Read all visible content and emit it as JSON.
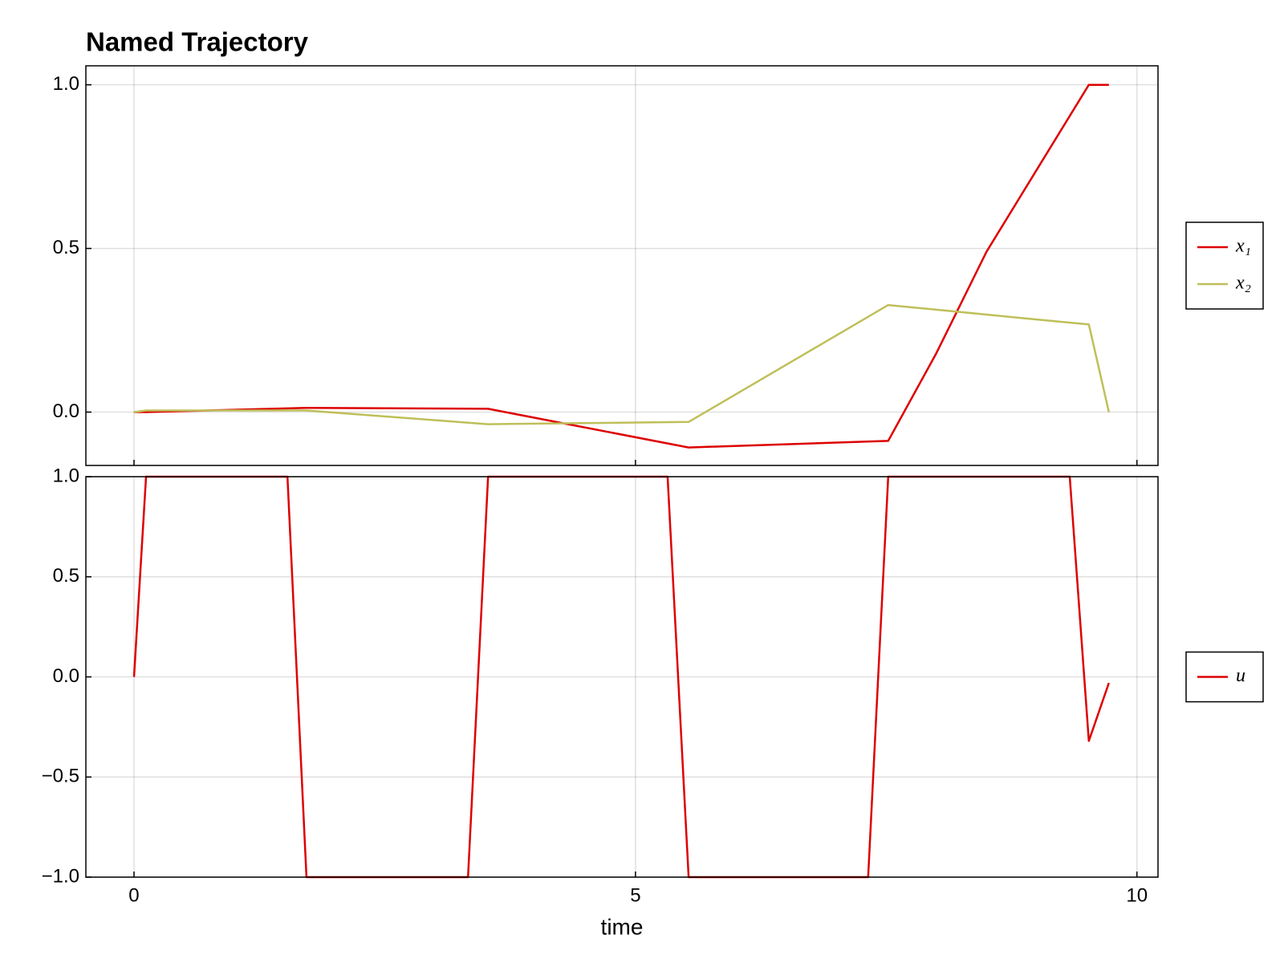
{
  "chart_data": [
    {
      "type": "line",
      "title": "Named Trajectory",
      "x": [
        0,
        0.12,
        1.72,
        3.53,
        5.53,
        7.52,
        8.0,
        8.5,
        9.0,
        9.52,
        9.72
      ],
      "series": [
        {
          "name": "x₁",
          "color": "#dd0000",
          "values": [
            0,
            0.0,
            0.013,
            0.01,
            -0.108,
            -0.088,
            0.18,
            0.49,
            0.74,
            1.0,
            1.0
          ]
        },
        {
          "name": "x₂",
          "color": "#bfbf5a",
          "values": [
            0,
            0.005,
            0.005,
            -0.037,
            -0.03,
            0.327,
            0.313,
            0.298,
            0.283,
            0.268,
            0.0
          ]
        }
      ],
      "xlim": [
        -0.48,
        10.21
      ],
      "xticks": [
        0,
        5,
        10
      ],
      "ylim": [
        -0.163,
        1.058
      ],
      "yticks": [
        {
          "value": 0,
          "label": "0.0"
        },
        {
          "value": 0.5,
          "label": "0.5"
        },
        {
          "value": 1,
          "label": "1.0"
        }
      ],
      "grid": true,
      "legend": "right"
    },
    {
      "type": "line",
      "xlabel": "time",
      "x": [
        0,
        0.12,
        1.53,
        1.72,
        3.33,
        3.53,
        5.32,
        5.53,
        7.32,
        7.52,
        9.33,
        9.52,
        9.72
      ],
      "series": [
        {
          "name": "u",
          "color": "#dd0000",
          "values": [
            0,
            1,
            1,
            -1,
            -1,
            1,
            1,
            -1,
            -1,
            1,
            1,
            -0.32,
            -0.03
          ]
        }
      ],
      "xlim": [
        -0.48,
        10.21
      ],
      "xticks": [
        0,
        5,
        10
      ],
      "ylim": [
        -1,
        1
      ],
      "yticks": [
        {
          "value": -1,
          "label": "−1.0"
        },
        {
          "value": -0.5,
          "label": "−0.5"
        },
        {
          "value": 0,
          "label": "0.0"
        },
        {
          "value": 0.5,
          "label": "0.5"
        },
        {
          "value": 1,
          "label": "1.0"
        }
      ],
      "grid": true,
      "legend": "right"
    }
  ]
}
